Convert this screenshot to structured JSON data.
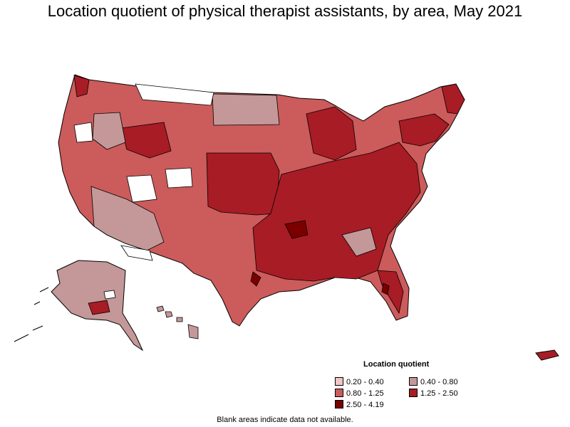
{
  "title": "Location quotient of physical therapist assistants, by area, May 2021",
  "legend": {
    "title": "Location quotient",
    "items": [
      {
        "label": "0.20 - 0.40",
        "color": "#f2c4c4"
      },
      {
        "label": "0.40 - 0.80",
        "color": "#c49898"
      },
      {
        "label": "0.80 - 1.25",
        "color": "#cc5b5b"
      },
      {
        "label": "1.25 - 2.50",
        "color": "#a81c25"
      },
      {
        "label": "2.50 - 4.19",
        "color": "#7a0000"
      }
    ]
  },
  "footnote": "Blank areas indicate data not available.",
  "colors": {
    "border": "#000000",
    "no_data": "#ffffff"
  }
}
